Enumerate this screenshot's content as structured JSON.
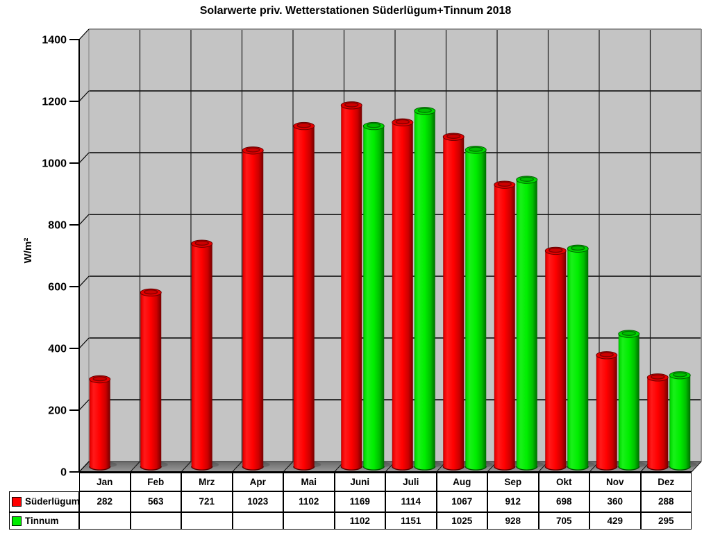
{
  "title": "Solarwerte priv. Wetterstationen Süderlügum+Tinnum 2018",
  "chart_data": {
    "type": "bar",
    "style": "3d-cylinder",
    "title": "Solarwerte priv. Wetterstationen Süderlügum+Tinnum 2018",
    "xlabel": "",
    "ylabel": "W/m²",
    "ylim": [
      0,
      1400
    ],
    "yticks": [
      0,
      200,
      400,
      600,
      800,
      1000,
      1200,
      1400
    ],
    "grid": true,
    "legend_position": "table-left",
    "categories": [
      "Jan",
      "Feb",
      "Mrz",
      "Apr",
      "Mai",
      "Juni",
      "Juli",
      "Aug",
      "Sep",
      "Okt",
      "Nov",
      "Dez"
    ],
    "series": [
      {
        "name": "Süderlügum",
        "color": "#ff0000",
        "values": [
          282,
          563,
          721,
          1023,
          1102,
          1169,
          1114,
          1067,
          912,
          698,
          360,
          288
        ]
      },
      {
        "name": "Tinnum",
        "color": "#00ee00",
        "values": [
          null,
          null,
          null,
          null,
          null,
          1102,
          1151,
          1025,
          928,
          705,
          429,
          295
        ]
      }
    ],
    "colors": {
      "wall": "#c4c4c4",
      "floor_dark": "#6a6a6a",
      "floor_light": "#9a9a9a",
      "grid_line": "#000000",
      "border": "#8f8f8f"
    }
  }
}
